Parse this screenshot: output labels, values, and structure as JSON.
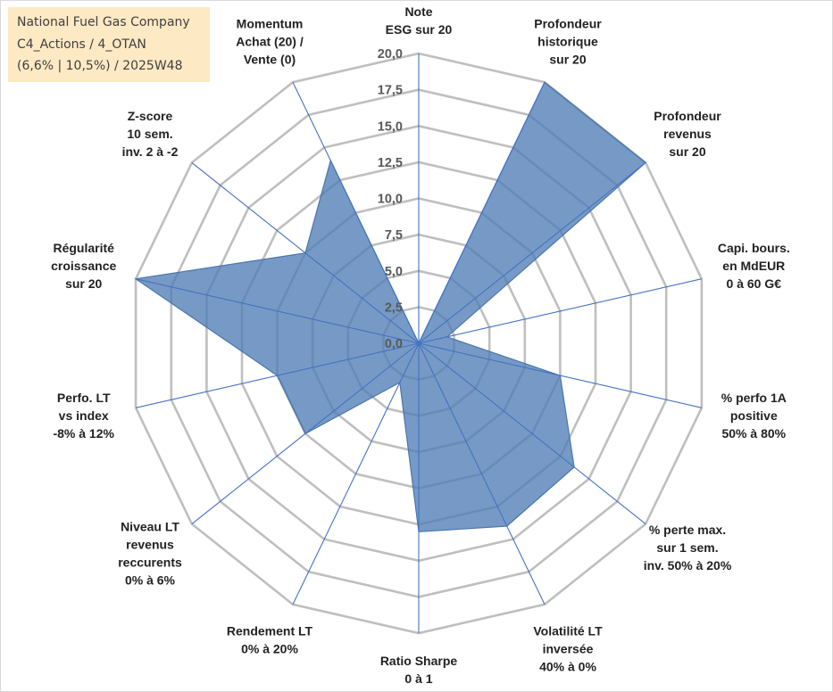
{
  "info_box": {
    "line1": "National Fuel Gas Company",
    "line2": "C4_Actions / 4_OTAN",
    "line3": "(6,6% | 10,5%) / 2025W48"
  },
  "chart_data": {
    "type": "radar",
    "title": "National Fuel Gas Company",
    "range": [
      0,
      20
    ],
    "ticks": [
      "0,0",
      "2,5",
      "5,0",
      "7,5",
      "10,0",
      "12,5",
      "15,0",
      "17,5",
      "20,0"
    ],
    "series_color": "#4f7eb5",
    "axes": [
      {
        "lines": [
          "Note",
          "ESG sur 20"
        ],
        "value": 0
      },
      {
        "lines": [
          "Profondeur",
          "historique",
          "sur 20"
        ],
        "value": 20
      },
      {
        "lines": [
          "Profondeur",
          "revenus",
          "sur 20"
        ],
        "value": 20
      },
      {
        "lines": [
          "Capi. bours.",
          "en MdEUR",
          "0 à 60 G€"
        ],
        "value": 2
      },
      {
        "lines": [
          "% perfo 1A",
          "positive",
          "50% à 80%"
        ],
        "value": 10
      },
      {
        "lines": [
          "% perte max.",
          "sur 1 sem.",
          "inv. 50% à 20%"
        ],
        "value": 13.7
      },
      {
        "lines": [
          "Volatilité LT",
          "inversée",
          "40% à 0%"
        ],
        "value": 14
      },
      {
        "lines": [
          "Ratio Sharpe",
          "0 à 1"
        ],
        "value": 13
      },
      {
        "lines": [
          "Rendement LT",
          "0% à 20%"
        ],
        "value": 3
      },
      {
        "lines": [
          "Niveau LT",
          "revenus",
          "reccurents",
          "0% à 6%"
        ],
        "value": 10
      },
      {
        "lines": [
          "Perfo. LT",
          "vs index",
          "-8% à 12%"
        ],
        "value": 10
      },
      {
        "lines": [
          "Régularité",
          "croissance",
          "sur 20"
        ],
        "value": 20
      },
      {
        "lines": [
          "Z-score",
          "10 sem.",
          "inv. 2 à -2"
        ],
        "value": 10
      },
      {
        "lines": [
          "Momentum",
          "Achat (20) /",
          "Vente (0)"
        ],
        "value": 14
      }
    ]
  }
}
